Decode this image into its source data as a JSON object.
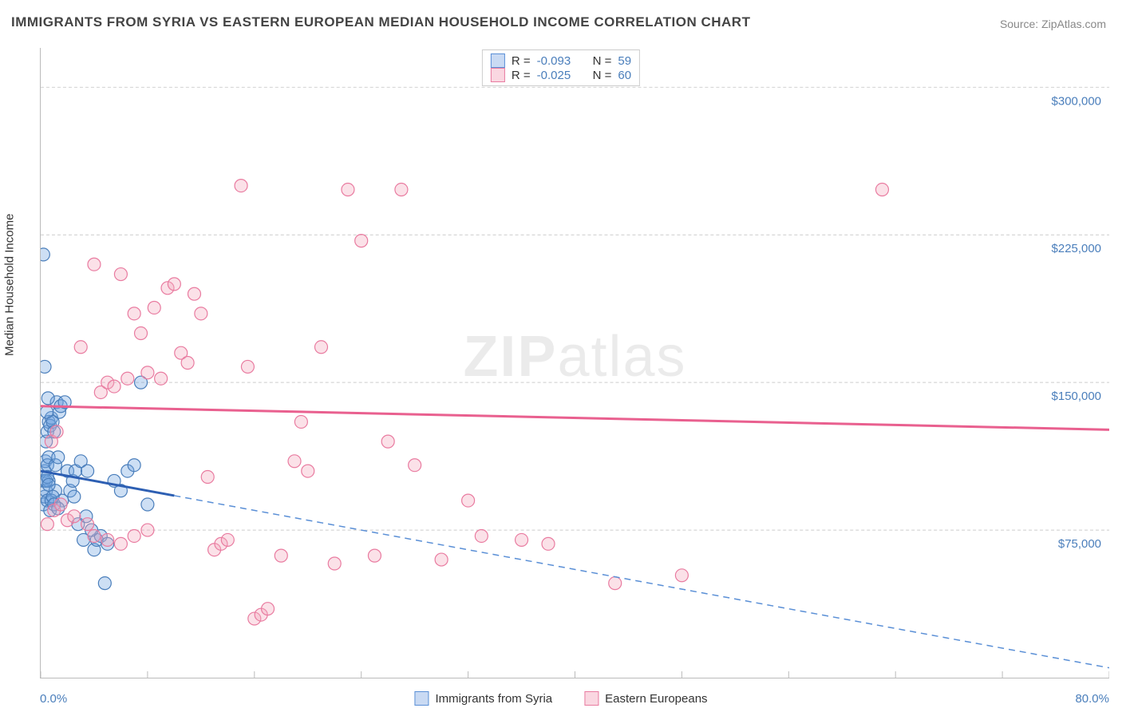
{
  "title": "IMMIGRANTS FROM SYRIA VS EASTERN EUROPEAN MEDIAN HOUSEHOLD INCOME CORRELATION CHART",
  "source_label": "Source:",
  "source_name": "ZipAtlas.com",
  "watermark_bold": "ZIP",
  "watermark_light": "atlas",
  "chart": {
    "type": "scatter",
    "y_axis_title": "Median Household Income",
    "xlim": [
      0,
      80
    ],
    "ylim": [
      0,
      320000
    ],
    "x_min_label": "0.0%",
    "x_max_label": "80.0%",
    "y_tick_values": [
      75000,
      150000,
      225000,
      300000
    ],
    "y_tick_labels": [
      "$75,000",
      "$150,000",
      "$225,000",
      "$300,000"
    ],
    "x_tick_positions": [
      0,
      8,
      16,
      24,
      32,
      40,
      48,
      56,
      64,
      72,
      80
    ],
    "grid_color": "#cccccc",
    "background_color": "#ffffff"
  },
  "series": [
    {
      "name": "Immigrants from Syria",
      "color_key": "blue",
      "fill": "rgba(100,150,220,0.35)",
      "stroke": "#4a7ebb",
      "r": -0.093,
      "n": 59,
      "trend": {
        "x1": 0,
        "y1": 105000,
        "x2": 80,
        "y2": 5000,
        "dash_from_x": 10
      },
      "points": [
        [
          0.2,
          215000
        ],
        [
          0.3,
          158000
        ],
        [
          0.2,
          88000
        ],
        [
          0.3,
          92000
        ],
        [
          0.25,
          100000
        ],
        [
          0.3,
          105000
        ],
        [
          0.35,
          110000
        ],
        [
          0.4,
          95000
        ],
        [
          0.5,
          90000
        ],
        [
          0.6,
          100000
        ],
        [
          0.4,
          120000
        ],
        [
          0.5,
          125000
        ],
        [
          0.6,
          130000
        ],
        [
          0.7,
          128000
        ],
        [
          0.8,
          132000
        ],
        [
          0.9,
          130000
        ],
        [
          1.0,
          125000
        ],
        [
          0.5,
          108000
        ],
        [
          0.6,
          112000
        ],
        [
          1.2,
          140000
        ],
        [
          1.4,
          135000
        ],
        [
          1.5,
          138000
        ],
        [
          1.8,
          140000
        ],
        [
          2.0,
          105000
        ],
        [
          2.2,
          95000
        ],
        [
          2.4,
          100000
        ],
        [
          2.6,
          105000
        ],
        [
          3.0,
          110000
        ],
        [
          3.5,
          105000
        ],
        [
          4.0,
          65000
        ],
        [
          4.2,
          70000
        ],
        [
          4.5,
          72000
        ],
        [
          5.0,
          68000
        ],
        [
          5.5,
          100000
        ],
        [
          6.0,
          95000
        ],
        [
          6.5,
          105000
        ],
        [
          7.0,
          108000
        ],
        [
          7.5,
          150000
        ],
        [
          8.0,
          88000
        ],
        [
          3.2,
          70000
        ],
        [
          3.8,
          75000
        ],
        [
          2.8,
          78000
        ],
        [
          1.6,
          90000
        ],
        [
          1.1,
          95000
        ],
        [
          0.7,
          85000
        ],
        [
          0.8,
          90000
        ],
        [
          0.9,
          92000
        ],
        [
          1.0,
          88000
        ],
        [
          1.3,
          86000
        ],
        [
          4.8,
          48000
        ],
        [
          0.4,
          100000
        ],
        [
          0.5,
          102000
        ],
        [
          0.6,
          98000
        ],
        [
          0.45,
          135000
        ],
        [
          0.55,
          142000
        ],
        [
          1.1,
          108000
        ],
        [
          1.3,
          112000
        ],
        [
          2.5,
          92000
        ],
        [
          3.4,
          82000
        ]
      ]
    },
    {
      "name": "Eastern Europeans",
      "color_key": "pink",
      "fill": "rgba(240,140,170,0.35)",
      "stroke": "#e97ba0",
      "r": -0.025,
      "n": 60,
      "trend": {
        "x1": 0,
        "y1": 138000,
        "x2": 80,
        "y2": 126000
      },
      "points": [
        [
          3.0,
          168000
        ],
        [
          4.0,
          210000
        ],
        [
          4.5,
          145000
        ],
        [
          5.0,
          150000
        ],
        [
          5.5,
          148000
        ],
        [
          6.0,
          205000
        ],
        [
          6.5,
          152000
        ],
        [
          7.0,
          185000
        ],
        [
          7.5,
          175000
        ],
        [
          8.0,
          155000
        ],
        [
          8.5,
          188000
        ],
        [
          9.0,
          152000
        ],
        [
          9.5,
          198000
        ],
        [
          10.0,
          200000
        ],
        [
          10.5,
          165000
        ],
        [
          11.0,
          160000
        ],
        [
          11.5,
          195000
        ],
        [
          12.0,
          185000
        ],
        [
          12.5,
          102000
        ],
        [
          13.0,
          65000
        ],
        [
          13.5,
          68000
        ],
        [
          14.0,
          70000
        ],
        [
          15.0,
          250000
        ],
        [
          15.5,
          158000
        ],
        [
          16.0,
          30000
        ],
        [
          16.5,
          32000
        ],
        [
          17.0,
          35000
        ],
        [
          18.0,
          62000
        ],
        [
          19.0,
          110000
        ],
        [
          19.5,
          130000
        ],
        [
          20.0,
          105000
        ],
        [
          21.0,
          168000
        ],
        [
          22.0,
          58000
        ],
        [
          23.0,
          248000
        ],
        [
          24.0,
          222000
        ],
        [
          25.0,
          62000
        ],
        [
          26.0,
          120000
        ],
        [
          27.0,
          248000
        ],
        [
          28.0,
          108000
        ],
        [
          30.0,
          60000
        ],
        [
          32.0,
          90000
        ],
        [
          33.0,
          72000
        ],
        [
          36.0,
          70000
        ],
        [
          38.0,
          68000
        ],
        [
          43.0,
          48000
        ],
        [
          48.0,
          52000
        ],
        [
          63.0,
          248000
        ],
        [
          1.0,
          85000
        ],
        [
          1.5,
          88000
        ],
        [
          2.0,
          80000
        ],
        [
          2.5,
          82000
        ],
        [
          0.5,
          78000
        ],
        [
          0.8,
          120000
        ],
        [
          1.2,
          125000
        ],
        [
          3.5,
          78000
        ],
        [
          4.0,
          72000
        ],
        [
          5.0,
          70000
        ],
        [
          6.0,
          68000
        ],
        [
          7.0,
          72000
        ],
        [
          8.0,
          75000
        ]
      ]
    }
  ],
  "legend": {
    "top": {
      "rows": [
        {
          "swatch": "blue",
          "r_label": "R =",
          "r_value": "-0.093",
          "n_label": "N =",
          "n_value": "59"
        },
        {
          "swatch": "pink",
          "r_label": "R =",
          "r_value": "-0.025",
          "n_label": "N =",
          "n_value": "60"
        }
      ]
    },
    "bottom": {
      "items": [
        {
          "swatch": "blue",
          "label": "Immigrants from Syria"
        },
        {
          "swatch": "pink",
          "label": "Eastern Europeans"
        }
      ]
    }
  }
}
